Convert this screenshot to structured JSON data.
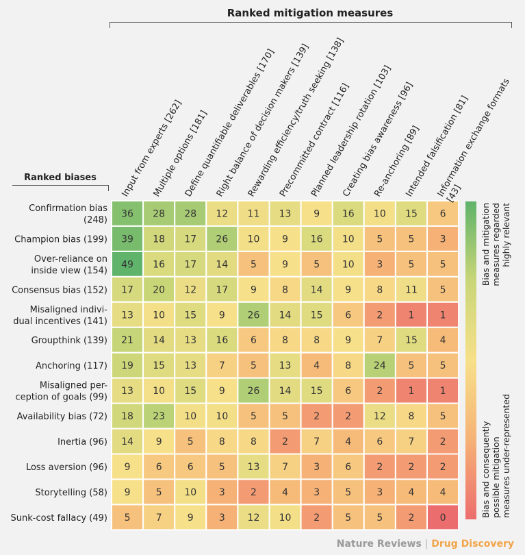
{
  "chart_data": {
    "type": "heatmap",
    "title": "Ranked mitigation measures",
    "row_title": "Ranked biases",
    "columns": [
      "Input from experts [262]",
      "Multiple options [181]",
      "Define quantifiable deliverables [170]",
      "Right balance of decision makers [139]",
      "Rewarding efficiency/truth seeking [138]",
      "Precommitted contract [116]",
      "Planned leadership rotation [103]",
      "Creating bias awareness [96]",
      "Re-anchoring [89]",
      "Intended falsification [81]",
      "Information exchange formats [43]"
    ],
    "rows": [
      "Confirmation bias (248)",
      "Champion bias (199)",
      "Over-reliance on inside view (154)",
      "Consensus bias (152)",
      "Misaligned individual incentives (141)",
      "Groupthink (139)",
      "Anchoring (117)",
      "Misaligned perception of goals (99)",
      "Availability bias (72)",
      "Inertia (96)",
      "Loss aversion (96)",
      "Storytelling (58)",
      "Sunk-cost fallacy (49)"
    ],
    "values": [
      [
        36,
        28,
        28,
        12,
        11,
        13,
        9,
        16,
        10,
        15,
        6
      ],
      [
        39,
        18,
        17,
        26,
        10,
        9,
        16,
        10,
        5,
        5,
        3
      ],
      [
        49,
        16,
        17,
        14,
        5,
        9,
        5,
        10,
        3,
        5,
        5
      ],
      [
        17,
        20,
        12,
        17,
        9,
        8,
        14,
        9,
        8,
        11,
        5
      ],
      [
        13,
        10,
        15,
        9,
        26,
        14,
        15,
        6,
        2,
        1,
        1
      ],
      [
        21,
        14,
        13,
        16,
        6,
        8,
        8,
        9,
        7,
        15,
        4
      ],
      [
        19,
        15,
        13,
        7,
        5,
        13,
        4,
        8,
        24,
        5,
        5
      ],
      [
        13,
        10,
        15,
        9,
        26,
        14,
        15,
        6,
        2,
        1,
        1
      ],
      [
        18,
        23,
        10,
        10,
        5,
        5,
        2,
        2,
        12,
        8,
        5
      ],
      [
        14,
        9,
        5,
        8,
        8,
        2,
        7,
        4,
        6,
        7,
        2
      ],
      [
        9,
        6,
        6,
        5,
        13,
        7,
        3,
        6,
        2,
        2,
        2
      ],
      [
        9,
        5,
        10,
        3,
        2,
        4,
        3,
        5,
        3,
        4,
        4
      ],
      [
        5,
        7,
        9,
        3,
        12,
        10,
        2,
        5,
        5,
        2,
        0
      ]
    ],
    "colors": {
      "high": "#5fb36a",
      "mid_high": "#c9d678",
      "mid": "#f7e08a",
      "mid_low": "#f6b276",
      "low": "#ec6d6d"
    },
    "legend": {
      "placement": "right",
      "high_label": "Bias and mitigation measures regarded highly relevant",
      "low_label": "Bias and consequently possible mitigation measures under-represented"
    }
  },
  "footer": {
    "journal": "Nature Reviews",
    "separator": "|",
    "section": "Drug Discovery"
  }
}
